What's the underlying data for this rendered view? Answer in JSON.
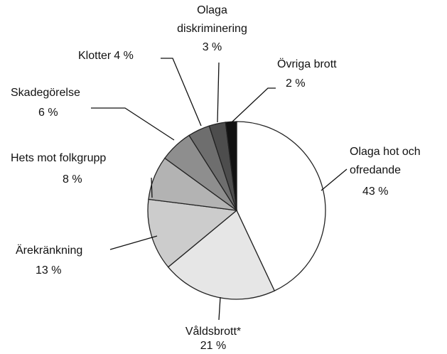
{
  "chart_data": {
    "type": "pie",
    "categories": [
      "Olaga hot och ofredande",
      "Våldsbrott*",
      "Ärekränkning",
      "Hets mot folkgrupp",
      "Skadegörelse",
      "Klotter",
      "Olaga diskriminering",
      "Övriga brott"
    ],
    "values": [
      43,
      21,
      13,
      8,
      6,
      4,
      3,
      2
    ],
    "value_labels": [
      "43 %",
      "21 %",
      "13 %",
      "8 %",
      "6 %",
      "4 %",
      "3 %",
      "2 %"
    ],
    "colors": [
      "#ffffff",
      "#e6e6e6",
      "#cccccc",
      "#b3b3b3",
      "#8e8e8e",
      "#6e6e6e",
      "#4d4d4d",
      "#111111"
    ]
  }
}
